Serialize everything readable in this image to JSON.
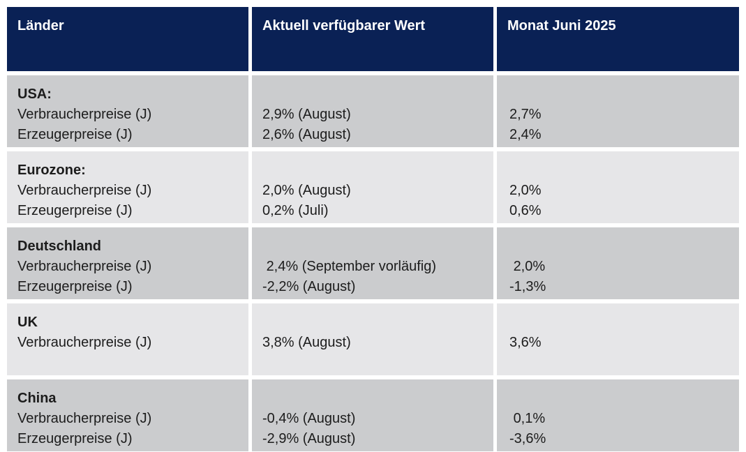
{
  "table": {
    "title_semantic": "Inflationsdaten nach Ländern",
    "colors": {
      "header_bg": "#0a2155",
      "header_text": "#ffffff",
      "row_medium": "#cbccce",
      "row_light": "#e6e6e8",
      "body_text": "#1c1c1c"
    },
    "header": {
      "col_country": "Länder",
      "col_current": "Aktuell verfügbarer Wert",
      "col_month": "Monat Juni 2025"
    },
    "rows": [
      {
        "country": "USA:",
        "metric1": "Verbraucherpreise (J)",
        "metric2": "Erzeugerpreise (J)",
        "current1": "2,9% (August)",
        "current2": "2,6% (August)",
        "june1": "2,7%",
        "june2": "2,4%"
      },
      {
        "country": "Eurozone:",
        "metric1": "Verbraucherpreise (J)",
        "metric2": "Erzeugerpreise (J)",
        "current1": "2,0% (August)",
        "current2": "0,2% (Juli)",
        "june1": "2,0%",
        "june2": "0,6%"
      },
      {
        "country": "Deutschland",
        "metric1": "Verbraucherpreise (J)",
        "metric2": "Erzeugerpreise (J)",
        "current1": " 2,4% (September vorläufig)",
        "current2": "-2,2% (August)",
        "june1": " 2,0%",
        "june2": "-1,3%"
      },
      {
        "country": "UK",
        "metric1": "Verbraucherpreise (J)",
        "metric2": "",
        "current1": "3,8% (August)",
        "current2": "",
        "june1": "3,6%",
        "june2": ""
      },
      {
        "country": "China",
        "metric1": "Verbraucherpreise (J)",
        "metric2": "Erzeugerpreise (J)",
        "current1": "-0,4% (August)",
        "current2": "-2,9% (August)",
        "june1": " 0,1%",
        "june2": "-3,6%"
      }
    ]
  }
}
